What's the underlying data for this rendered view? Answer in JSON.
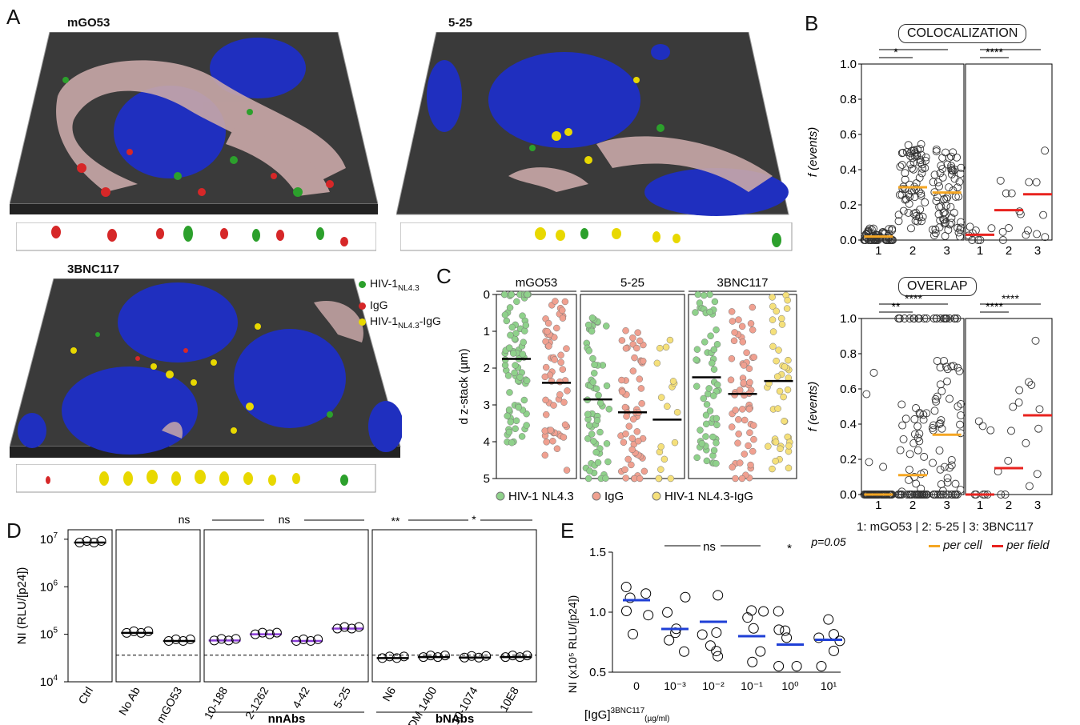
{
  "panel_A": {
    "letter": "A",
    "images": [
      {
        "title": "mGO53"
      },
      {
        "title": "5-25"
      },
      {
        "title": "3BNC117"
      }
    ],
    "legend": [
      {
        "label": "HIV-1",
        "sub": "NL4.3",
        "color": "#2ca02c"
      },
      {
        "label": "IgG",
        "sub": "",
        "color": "#d62728"
      },
      {
        "label": "HIV-1",
        "sub": "NL4.3",
        "suffix": "-IgG",
        "color": "#e8d800"
      }
    ]
  },
  "panel_B": {
    "letter": "B",
    "top_title": "COLOCALIZATION",
    "bottom_title": "OVERLAP",
    "ylabel": "f (events)",
    "yticks": [
      "0.0",
      "0.2",
      "0.4",
      "0.6",
      "0.8",
      "1.0"
    ],
    "xticks": [
      "1",
      "2",
      "3"
    ],
    "colocalization_sig_left": [
      "*",
      "***"
    ],
    "colocalization_sig_right": [
      "****",
      "****"
    ],
    "overlap_sig_left": [
      "**",
      "****"
    ],
    "overlap_sig_right": [
      "****",
      "****"
    ],
    "footer": "1: mGO53 | 2: 5-25 | 3: 3BNC117",
    "legend_cell": "per cell",
    "legend_field": "per field",
    "color_cell": "#f5a623",
    "color_field": "#e8231f"
  },
  "panel_C": {
    "letter": "C",
    "groups": [
      "mGO53",
      "5-25",
      "3BNC117"
    ],
    "ylabel": "d z-stack (µm)",
    "yticks": [
      "0",
      "1",
      "2",
      "3",
      "4",
      "5"
    ],
    "legend": [
      {
        "label": "HIV-1",
        "sub": "NL4.3",
        "color": "#8fd18b"
      },
      {
        "label": "IgG",
        "sub": "",
        "color": "#f0a090"
      },
      {
        "label": "HIV-1",
        "sub": "NL4.3",
        "suffix": "-IgG",
        "color": "#f5e07a"
      }
    ]
  },
  "panel_D": {
    "letter": "D",
    "ylabel": "NI (RLU/[p24])",
    "yticks": [
      "10^4",
      "10^5",
      "10^6",
      "10^7"
    ],
    "categories": [
      "Ctrl",
      "No Ab",
      "mGO53",
      "10-188",
      "2-1262",
      "4-42",
      "5-25",
      "N6",
      "PGDM 1400",
      "10-1074",
      "10E8"
    ],
    "sig": [
      "ns",
      "ns",
      "**",
      "*"
    ],
    "group_labels": [
      "nnAbs",
      "bNAbs"
    ]
  },
  "panel_E": {
    "letter": "E",
    "ylabel": "NI (x10⁵ RLU/[p24])",
    "xlabel": "[IgG]",
    "xlabel_sup": "3BNC117",
    "xlabel_sub": "(µg/ml)",
    "xticks": [
      "0",
      "10⁻³",
      "10⁻²",
      "10⁻¹",
      "10⁰",
      "10¹"
    ],
    "yticks": [
      "0.5",
      "1.0",
      "1.5"
    ],
    "sig": [
      "ns",
      "*",
      "p=0.05"
    ]
  },
  "chart_data": [
    {
      "type": "scatter",
      "panel": "B-colocalization",
      "categories": [
        "1",
        "2",
        "3"
      ],
      "series": [
        {
          "name": "per cell",
          "medians": [
            0.02,
            0.3,
            0.27
          ]
        },
        {
          "name": "per field",
          "medians": [
            0.03,
            0.17,
            0.26
          ]
        }
      ],
      "ylim": [
        0,
        1
      ]
    },
    {
      "type": "scatter",
      "panel": "B-overlap",
      "categories": [
        "1",
        "2",
        "3"
      ],
      "series": [
        {
          "name": "per cell",
          "medians": [
            0.0,
            0.11,
            0.34
          ]
        },
        {
          "name": "per field",
          "medians": [
            0.0,
            0.15,
            0.45
          ]
        }
      ],
      "ylim": [
        0,
        1
      ]
    },
    {
      "type": "scatter",
      "panel": "C",
      "categories": [
        "mGO53",
        "5-25",
        "3BNC117"
      ],
      "series": [
        {
          "name": "HIV-1NL4.3",
          "medians": [
            1.75,
            2.85,
            2.25
          ]
        },
        {
          "name": "IgG",
          "medians": [
            2.4,
            3.2,
            2.7
          ]
        },
        {
          "name": "HIV-1NL4.3-IgG",
          "medians": [
            null,
            3.4,
            2.35
          ]
        }
      ],
      "ylim": [
        0,
        5
      ]
    },
    {
      "type": "scatter",
      "panel": "D",
      "categories": [
        "Ctrl",
        "No Ab",
        "mGO53",
        "10-188",
        "2-1262",
        "4-42",
        "5-25",
        "N6",
        "PGDM 1400",
        "10-1074",
        "10E8"
      ],
      "values_log10": [
        6.93,
        5.03,
        4.86,
        4.87,
        5.0,
        4.86,
        5.12,
        4.5,
        4.52,
        4.51,
        4.52
      ],
      "ylim_log10": [
        4,
        7.2
      ]
    },
    {
      "type": "scatter",
      "panel": "E",
      "categories": [
        "0",
        "10⁻³",
        "10⁻²",
        "10⁻¹",
        "10⁰",
        "10¹"
      ],
      "means": [
        1.1,
        0.86,
        0.92,
        0.8,
        0.73,
        0.77
      ],
      "ylim": [
        0.5,
        1.5
      ]
    }
  ]
}
